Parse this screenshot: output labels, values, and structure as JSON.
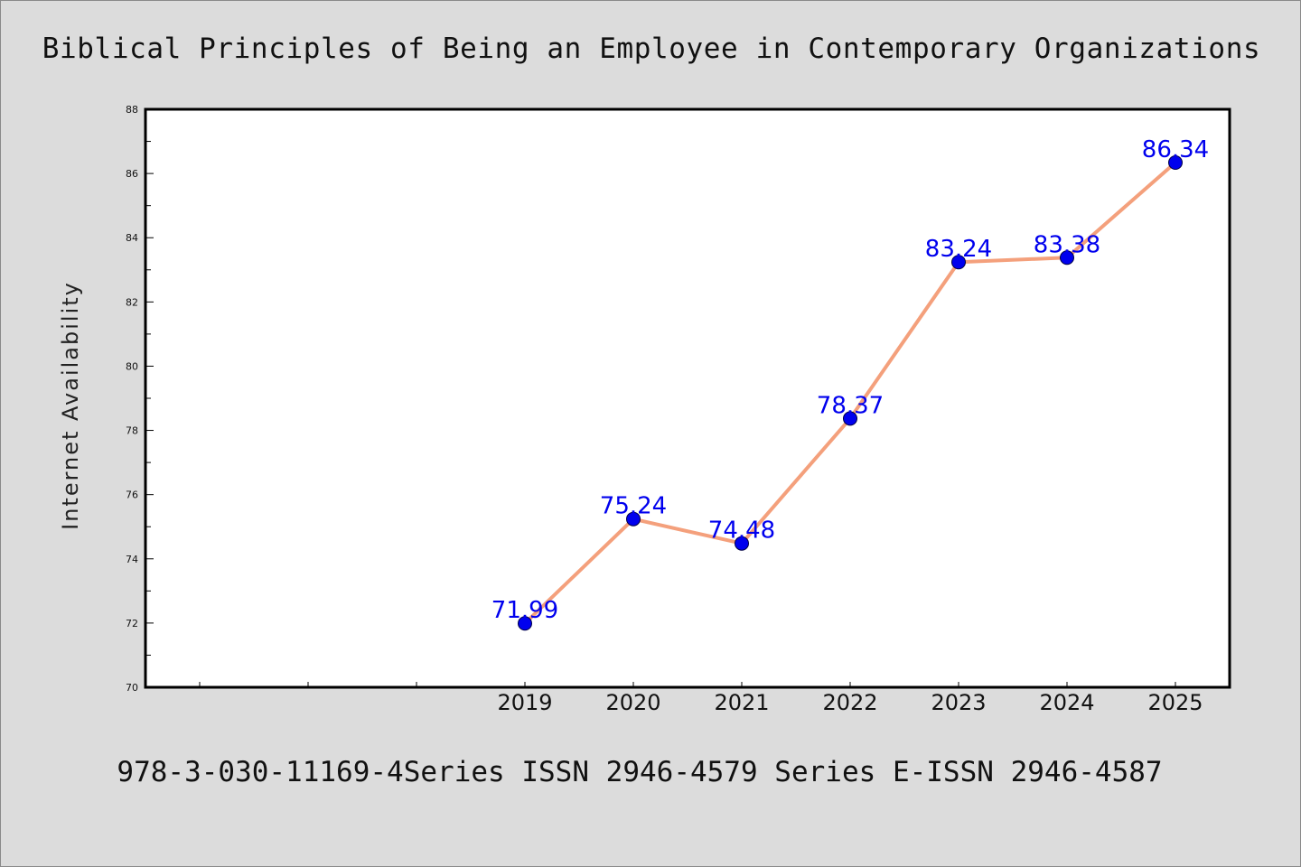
{
  "chart_data": {
    "type": "line",
    "title": "Biblical Principles of Being an Employee in Contemporary Organizations",
    "xlabel": "",
    "ylabel": "Internet Availability",
    "caption": "978-3-030-11169-4Series ISSN 2946-4579 Series E-ISSN 2946-4587",
    "categories": [
      "2019",
      "2020",
      "2021",
      "2022",
      "2023",
      "2024",
      "2025"
    ],
    "series": [
      {
        "values": [
          71.99,
          75.24,
          74.48,
          78.37,
          83.24,
          83.38,
          86.34
        ],
        "data_labels": [
          "71.99",
          "75.24",
          "74.48",
          "78.37",
          "83.24",
          "83.38",
          "86.34"
        ]
      }
    ],
    "ylim": [
      70,
      88
    ],
    "y_ticks": [
      70,
      72,
      74,
      76,
      78,
      80,
      82,
      84,
      86,
      88
    ],
    "y_tick_labels": [
      "70",
      "72",
      "74",
      "76",
      "78",
      "80",
      "82",
      "84",
      "86",
      "88"
    ],
    "x_slots": 10,
    "first_category_slot": 3,
    "grid": false,
    "legend": "none",
    "colors": {
      "background": "#dcdcdc",
      "plot_area": "#ffffff",
      "line": "#f4a07c",
      "marker": "#0000ee",
      "data_label": "#0000ee",
      "text": "#111111",
      "axis": "#000000"
    }
  }
}
